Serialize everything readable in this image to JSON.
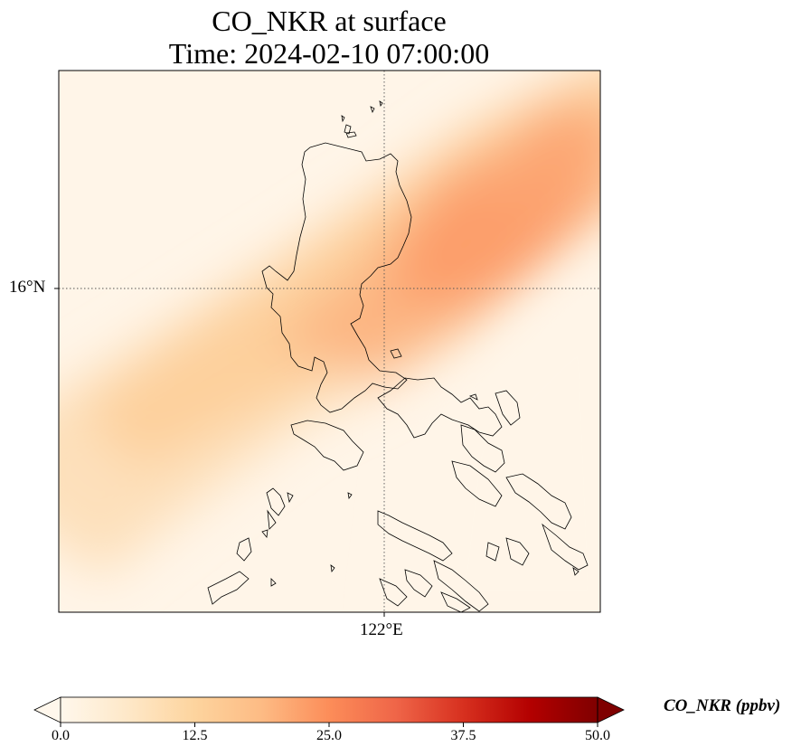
{
  "title": {
    "line1": "CO_NKR at surface",
    "line2": "Time: 2024-02-10 07:00:00"
  },
  "map": {
    "lat_tick_label": "16°N",
    "lon_tick_label": "122°E",
    "gridline_style": "dotted",
    "colormap": "OrRd",
    "coastline_color": "#000000"
  },
  "colorbar": {
    "label": "CO_NKR (ppbv)",
    "ticks": [
      "0.0",
      "12.5",
      "25.0",
      "37.5",
      "50.0"
    ],
    "range": [
      0,
      50
    ],
    "extend": "both",
    "colors": [
      "#fff7ec",
      "#fee8c8",
      "#fdd49e",
      "#fdbb84",
      "#fc8d59",
      "#ef6548",
      "#d7301f",
      "#b30000",
      "#7f0000"
    ]
  }
}
